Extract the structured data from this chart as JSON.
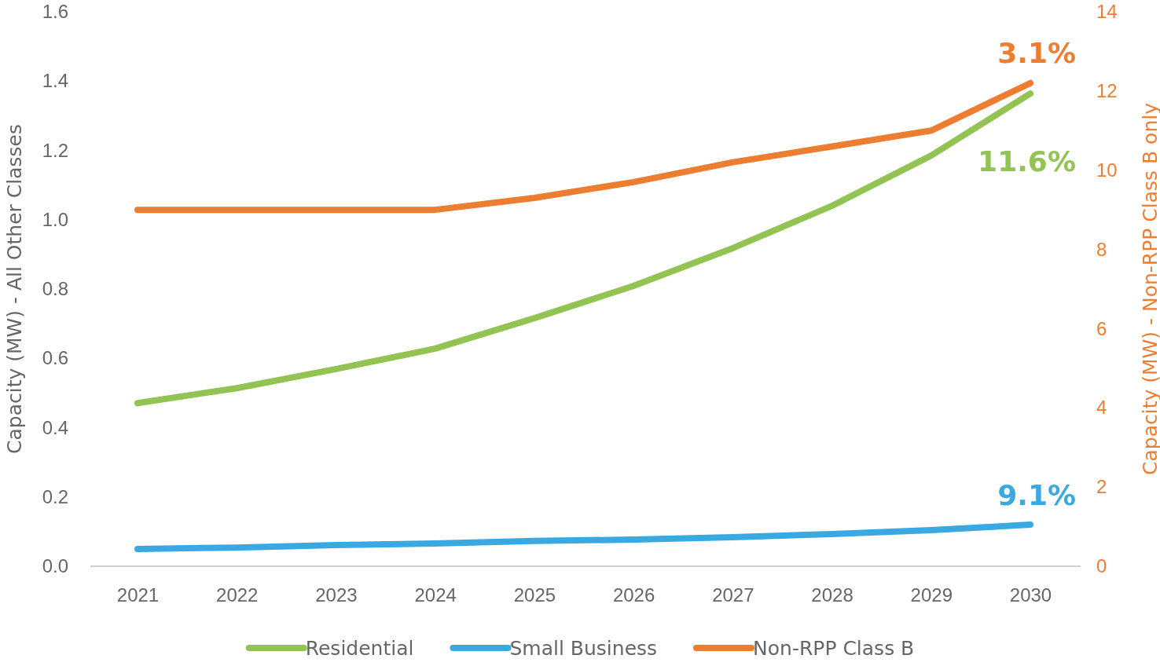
{
  "chart_data": {
    "type": "line",
    "categories": [
      "2021",
      "2022",
      "2023",
      "2024",
      "2025",
      "2026",
      "2027",
      "2028",
      "2029",
      "2030"
    ],
    "ylabel": "Capacity (MW) -  All Other Classes",
    "y2label": "Capacity (MW) - Non-RPP Class B only",
    "ylim": [
      0,
      1.6
    ],
    "yticks": [
      {
        "value": 0,
        "label": "0.0"
      },
      0.2,
      0.4,
      0.6,
      0.8,
      {
        "value": 1,
        "label": "1.0"
      },
      1.2,
      1.4,
      1.6
    ],
    "y2lim": [
      0,
      14
    ],
    "y2ticks": [
      0,
      2,
      4,
      6,
      8,
      10,
      12,
      14
    ],
    "series": [
      {
        "name": "Residential",
        "color": "#92c353",
        "values": [
          0.471,
          0.514,
          0.569,
          0.628,
          0.716,
          0.809,
          0.918,
          1.04,
          1.185,
          1.364
        ]
      },
      {
        "name": "Small Business",
        "color": "#3aa9e2",
        "values": [
          0.05,
          0.054,
          0.061,
          0.066,
          0.073,
          0.077,
          0.084,
          0.093,
          0.104,
          0.12
        ]
      },
      {
        "name": "Non-RPP Class B",
        "color": "#ed7d31",
        "axis": "y2",
        "values": [
          9.0,
          9.0,
          9.0,
          9.0,
          9.3,
          9.7,
          10.2,
          10.6,
          11.0,
          12.2
        ]
      }
    ],
    "annotations": [
      "11.6%",
      "9.1%",
      "3.1%"
    ],
    "legend": "bottom",
    "grid": false,
    "marker": "none",
    "line_style": "solid"
  }
}
